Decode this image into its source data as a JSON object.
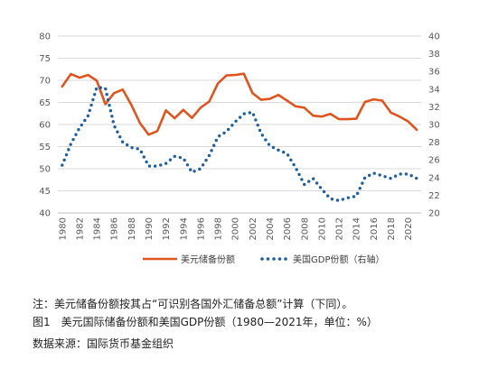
{
  "chart_data": {
    "type": "line",
    "x": [
      1980,
      1981,
      1982,
      1983,
      1984,
      1985,
      1986,
      1987,
      1988,
      1989,
      1990,
      1991,
      1992,
      1993,
      1994,
      1995,
      1996,
      1997,
      1998,
      1999,
      2000,
      2001,
      2002,
      2003,
      2004,
      2005,
      2006,
      2007,
      2008,
      2009,
      2010,
      2011,
      2012,
      2013,
      2014,
      2015,
      2016,
      2017,
      2018,
      2019,
      2020,
      2021
    ],
    "x_tick_labels": [
      "1980",
      "1982",
      "1984",
      "1986",
      "1988",
      "1990",
      "1992",
      "1994",
      "1996",
      "1998",
      "2000",
      "2002",
      "2004",
      "2006",
      "2008",
      "2010",
      "2012",
      "2014",
      "2016",
      "2018",
      "2020"
    ],
    "series": [
      {
        "name": "美元储备份额",
        "axis": "left",
        "style": "solid",
        "color": "#e0541e",
        "values": [
          68.6,
          71.4,
          70.6,
          71.2,
          69.9,
          64.6,
          67.1,
          67.9,
          64.4,
          60.3,
          57.7,
          58.5,
          63.2,
          61.4,
          63.3,
          61.5,
          63.8,
          65.2,
          69.3,
          71.1,
          71.2,
          71.5,
          67.1,
          65.6,
          65.8,
          66.7,
          65.4,
          64.1,
          63.8,
          62.0,
          61.8,
          62.4,
          61.2,
          61.2,
          61.3,
          65.1,
          65.7,
          65.4,
          62.7,
          61.8,
          60.7,
          58.8
        ]
      },
      {
        "name": "美国GDP份额（右轴）",
        "axis": "right",
        "style": "dotted",
        "color": "#1f5fa0",
        "values": [
          25.4,
          27.8,
          29.6,
          31.0,
          34.2,
          34.1,
          29.9,
          28.0,
          27.4,
          27.2,
          25.3,
          25.3,
          25.6,
          26.4,
          26.2,
          24.6,
          25.0,
          26.5,
          28.6,
          29.2,
          30.3,
          31.2,
          31.4,
          29.0,
          27.6,
          27.1,
          26.7,
          25.1,
          23.2,
          23.9,
          22.7,
          21.6,
          21.4,
          21.7,
          21.9,
          24.0,
          24.5,
          24.2,
          23.9,
          24.4,
          24.4,
          23.9
        ]
      }
    ],
    "y_left": {
      "min": 40,
      "max": 80,
      "ticks": [
        40,
        45,
        50,
        55,
        60,
        65,
        70,
        75,
        80
      ]
    },
    "y_right": {
      "min": 20,
      "max": 40,
      "ticks": [
        20,
        22,
        24,
        26,
        28,
        30,
        32,
        34,
        36,
        38,
        40
      ]
    },
    "grid": "horizontal",
    "legend_position": "bottom"
  },
  "captions": {
    "note": "注：美元储备份额按其占“可识别各国外汇储备总额”计算（下同）。",
    "figure": "图1　美元国际储备份额和美国GDP份额（1980—2021年，单位：%）",
    "source": "数据来源：国际货币基金组织"
  }
}
